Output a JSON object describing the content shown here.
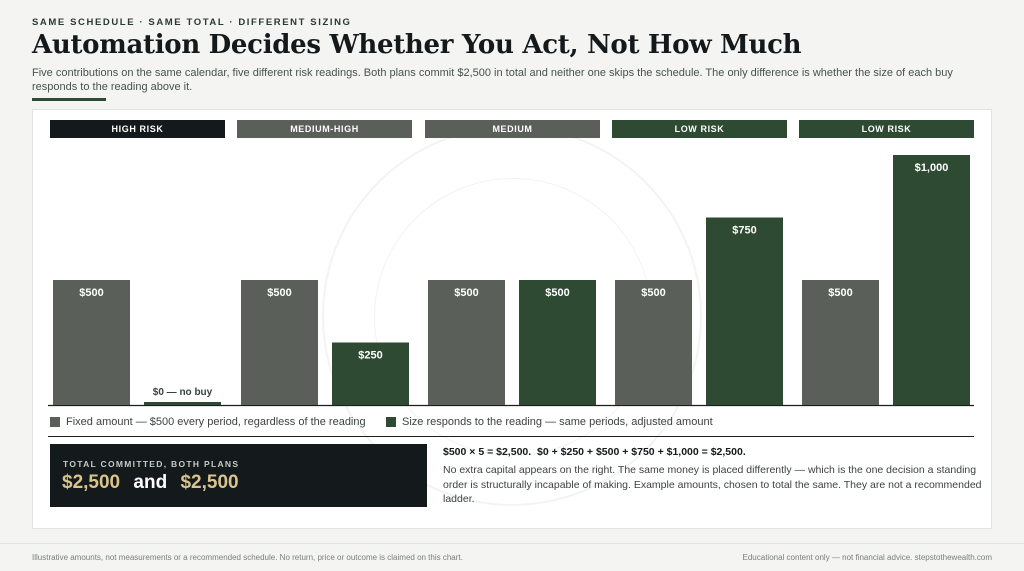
{
  "header": {
    "kicker": "SAME SCHEDULE · SAME TOTAL · DIFFERENT SIZING",
    "title": "Automation Decides Whether You Act, Not How Much",
    "subtitle": "Five contributions on the same calendar, five different risk readings. Both plans commit $2,500 in total and neither one skips the schedule. The only difference is whether the size of each buy responds to the reading above it."
  },
  "colors": {
    "fixed": "#5b5f5a",
    "responsive": "#2e4a32",
    "dark": "#14191c",
    "gold": "#d9c48e"
  },
  "chart_data": {
    "type": "bar",
    "categories": [
      "HIGH RISK",
      "MEDIUM-HIGH",
      "MEDIUM",
      "LOW RISK",
      "LOW RISK"
    ],
    "category_colors": [
      "#14191c",
      "#5b5f5a",
      "#5b5f5a",
      "#2e4a32",
      "#2e4a32"
    ],
    "series": [
      {
        "name": "Fixed amount — $500 every period, regardless of the reading",
        "color": "#5b5f5a",
        "values": [
          500,
          500,
          500,
          500,
          500
        ],
        "labels": [
          "$500",
          "$500",
          "$500",
          "$500",
          "$500"
        ]
      },
      {
        "name": "Size responds to the reading — same periods, adjusted amount",
        "color": "#2e4a32",
        "values": [
          0,
          250,
          500,
          750,
          1000
        ],
        "labels": [
          "$0 — no buy",
          "$250",
          "$500",
          "$750",
          "$1,000"
        ]
      }
    ],
    "ylim": [
      0,
      1000
    ],
    "grid": false,
    "legend_position": "bottom-left"
  },
  "summary": {
    "label": "TOTAL COMMITTED, BOTH PLANS",
    "left_value": "$2,500",
    "connector": "and",
    "right_value": "$2,500",
    "equation": "$500 × 5 = $2,500.  $0 + $250 + $500 + $750 + $1,000 = $2,500.",
    "note": "No extra capital appears on the right. The same money is placed differently — which is the one decision a standing order is structurally incapable of making. Example amounts, chosen to total the same. They are not a recommended ladder."
  },
  "footer": {
    "left": "Illustrative amounts, not measurements or a recommended schedule. No return, price or outcome is claimed on this chart.",
    "right": "Educational content only — not financial advice.  stepstothewealth.com"
  }
}
